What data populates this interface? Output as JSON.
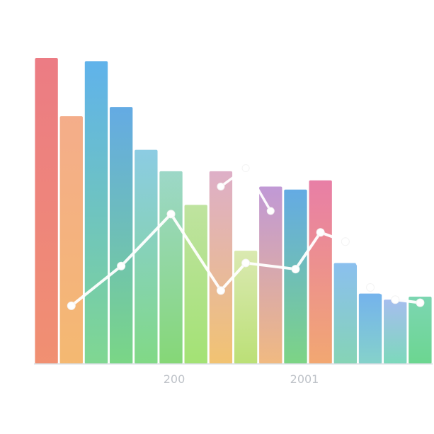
{
  "chart_data": {
    "type": "bar",
    "title": "",
    "xlabel": "",
    "ylabel": "",
    "x_tick_labels": [
      "200",
      "2001"
    ],
    "ylim": [
      0,
      100
    ],
    "grid": false,
    "legend": "none",
    "bars": [
      {
        "value": 100,
        "colors": [
          "#e96a73",
          "#f08a6a"
        ]
      },
      {
        "value": 81,
        "colors": [
          "#f2a27a",
          "#f4b56a"
        ]
      },
      {
        "value": 99,
        "colors": [
          "#4aa8e8",
          "#79d58b"
        ]
      },
      {
        "value": 84,
        "colors": [
          "#4f9fe0",
          "#73d47f"
        ]
      },
      {
        "value": 70,
        "colors": [
          "#7cc5df",
          "#7ad77f"
        ]
      },
      {
        "value": 63,
        "colors": [
          "#8fd2c0",
          "#7fd56f"
        ]
      },
      {
        "value": 52,
        "colors": [
          "#b6df92",
          "#9ee06d"
        ]
      },
      {
        "value": 63,
        "colors": [
          "#d9a4c0",
          "#f1c06a"
        ]
      },
      {
        "value": 37,
        "colors": [
          "#d5e6a6",
          "#b7de6f"
        ]
      },
      {
        "value": 58,
        "colors": [
          "#b88bd0",
          "#f0b67a"
        ]
      },
      {
        "value": 57,
        "colors": [
          "#4f9fe0",
          "#76d27e"
        ]
      },
      {
        "value": 60,
        "colors": [
          "#e56d9a",
          "#f1a36a"
        ]
      },
      {
        "value": 33,
        "colors": [
          "#7bb7ec",
          "#7fd2b1"
        ]
      },
      {
        "value": 23,
        "colors": [
          "#62a9ea",
          "#7fd0c7"
        ]
      },
      {
        "value": 21,
        "colors": [
          "#9ab5ec",
          "#75d7b7"
        ]
      },
      {
        "value": 22,
        "colors": [
          "#6ad0a7",
          "#64d48a"
        ]
      }
    ],
    "series": [
      {
        "color": "#ffffff",
        "values": [
          [
            1,
            19
          ],
          [
            3,
            32
          ],
          [
            5,
            49
          ],
          [
            7,
            24
          ],
          [
            8,
            33
          ],
          [
            10,
            31
          ],
          [
            11,
            43
          ],
          [
            12,
            40
          ],
          [
            13,
            25
          ],
          [
            14,
            21
          ],
          [
            15,
            20
          ]
        ]
      },
      {
        "color": "#ffffff",
        "values": [
          [
            7,
            58
          ],
          [
            8,
            64
          ],
          [
            9,
            50
          ]
        ]
      }
    ]
  },
  "colors": {
    "axis": "#d8dde4",
    "line": "#ffffff",
    "line_stroke": "#f3f3f3"
  }
}
